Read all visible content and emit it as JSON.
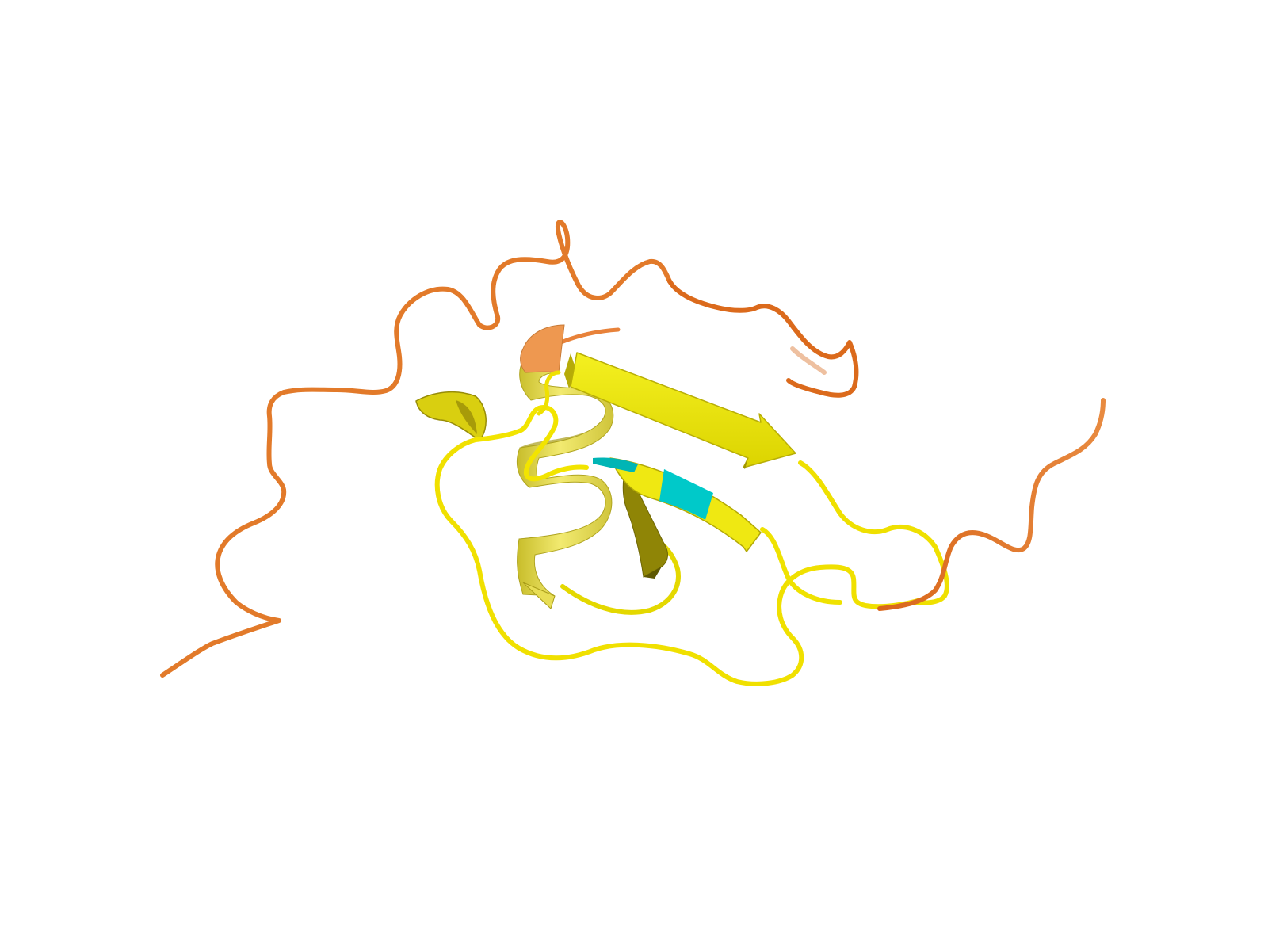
{
  "scene": {
    "subject": "protein-cartoon",
    "background": "#ffffff"
  },
  "colors": {
    "coil_confident": "#f2e600",
    "coil_low": "#e0701a",
    "coil_low_light": "#e8904a",
    "helix_light": "#f0e86a",
    "helix_dark": "#b8ad1c",
    "helix_front": "#ece25a",
    "strand_bright": "#eeea10",
    "strand_dark": "#a89c08",
    "strand_cyan": "#00c8c8",
    "helix_orange": "#ef9a4c"
  },
  "icons": {
    "helix": "helix-icon",
    "strand": "arrow-icon"
  }
}
